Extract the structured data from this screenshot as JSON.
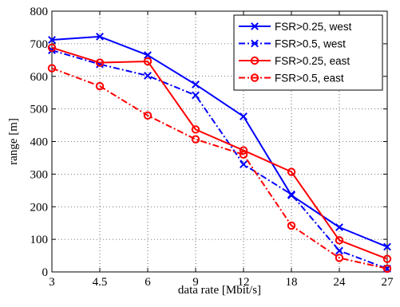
{
  "chart_data": {
    "type": "line",
    "xlabel": "data rate [Mbit/s]",
    "ylabel": "range [m]",
    "categories": [
      "3",
      "4.5",
      "6",
      "9",
      "12",
      "18",
      "24",
      "27"
    ],
    "ylim": [
      0,
      800
    ],
    "yticks": [
      "0",
      "100",
      "200",
      "300",
      "400",
      "500",
      "600",
      "700",
      "800"
    ],
    "grid": true,
    "legend_position": "top-right",
    "series": [
      {
        "name": "FSR>0.25, west",
        "color": "#0000ff",
        "dash": "solid",
        "marker": "x",
        "values": [
          712,
          722,
          665,
          575,
          477,
          235,
          137,
          77
        ]
      },
      {
        "name": "FSR>0.5, west",
        "color": "#0000ff",
        "dash": "dashdot",
        "marker": "x",
        "values": [
          680,
          637,
          602,
          542,
          330,
          238,
          65,
          10
        ]
      },
      {
        "name": "FSR>0.25, east",
        "color": "#ff0000",
        "dash": "solid",
        "marker": "o",
        "values": [
          688,
          642,
          646,
          437,
          373,
          307,
          97,
          40
        ]
      },
      {
        "name": "FSR>0.5, east",
        "color": "#ff0000",
        "dash": "dashdot",
        "marker": "o",
        "values": [
          625,
          570,
          480,
          407,
          360,
          142,
          43,
          10
        ]
      }
    ]
  }
}
